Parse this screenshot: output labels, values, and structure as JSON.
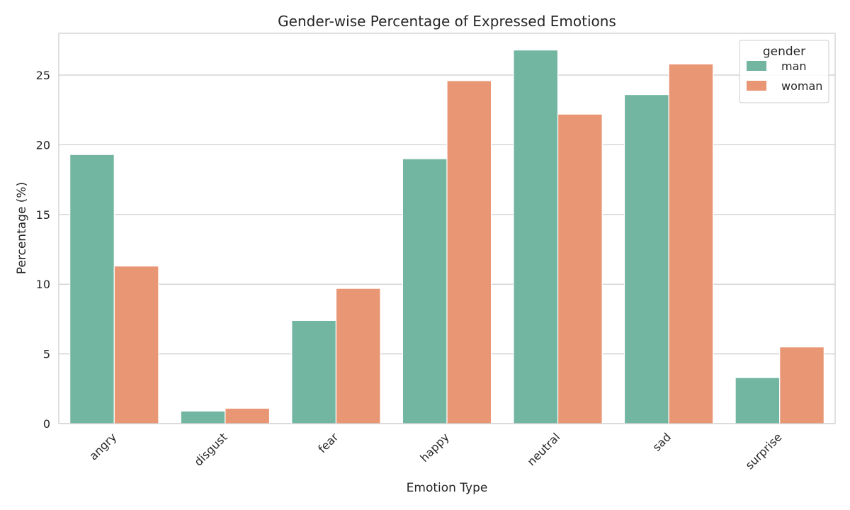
{
  "chart_data": {
    "type": "bar",
    "title": "Gender-wise Percentage of Expressed Emotions",
    "xlabel": "Emotion Type",
    "ylabel": "Percentage (%)",
    "categories": [
      "angry",
      "disgust",
      "fear",
      "happy",
      "neutral",
      "sad",
      "surprise"
    ],
    "series": [
      {
        "name": "man",
        "color": "#72b6a1",
        "values": [
          19.3,
          0.9,
          7.4,
          19.0,
          26.8,
          23.6,
          3.3
        ]
      },
      {
        "name": "woman",
        "color": "#e99675",
        "values": [
          11.3,
          1.1,
          9.7,
          24.6,
          22.2,
          25.8,
          5.5
        ]
      }
    ],
    "ylim": [
      0,
      28
    ],
    "yticks": [
      "0",
      "5",
      "10",
      "15",
      "20",
      "25"
    ],
    "grid": true,
    "legend": {
      "title": "gender",
      "placement": "top-right"
    }
  }
}
